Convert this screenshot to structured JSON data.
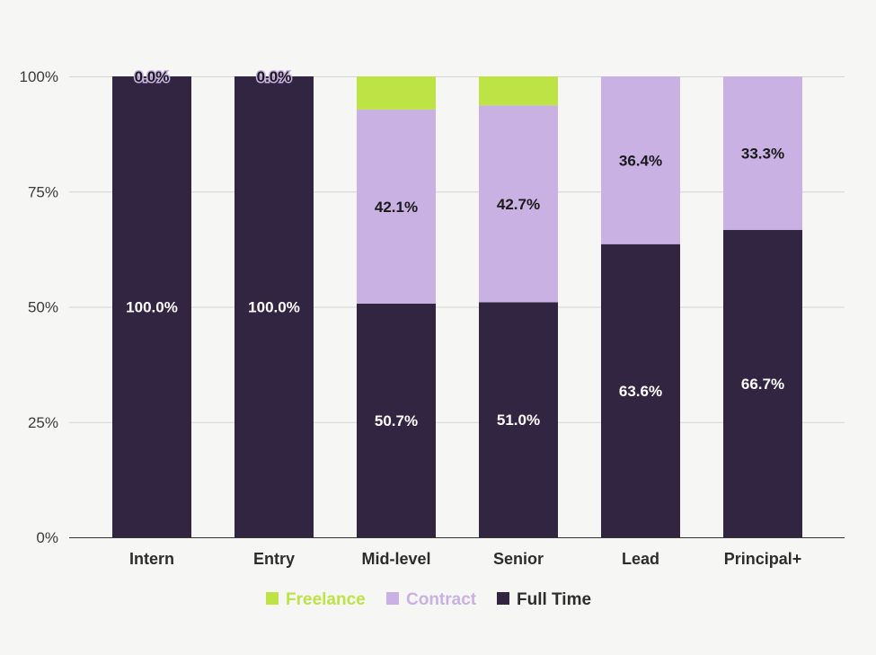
{
  "chart_data": {
    "type": "bar",
    "stacked": true,
    "normalized": true,
    "categories": [
      "Intern",
      "Entry",
      "Mid-level",
      "Senior",
      "Lead",
      "Principal+"
    ],
    "series": [
      {
        "name": "Full Time",
        "color": "#312542",
        "label_color": "#ffffff",
        "values": [
          100.0,
          100.0,
          50.7,
          51.0,
          63.6,
          66.7
        ]
      },
      {
        "name": "Contract",
        "color": "#c9b1e3",
        "label_color": "#1a1a1a",
        "values": [
          0.0,
          0.0,
          42.1,
          42.7,
          36.4,
          33.3
        ]
      },
      {
        "name": "Freelance",
        "color": "#bde345",
        "label_color": "#1a1a1a",
        "values": [
          0.0,
          0.0,
          7.2,
          6.3,
          0.0,
          0.0
        ]
      }
    ],
    "data_labels": {
      "Full Time": [
        "100.0%",
        "100.0%",
        "50.7%",
        "51.0%",
        "63.6%",
        "66.7%"
      ],
      "Contract": [
        "0.0%",
        "0.0%",
        "42.1%",
        "42.7%",
        "36.4%",
        "33.3%"
      ]
    },
    "yticks": [
      "0%",
      "25%",
      "50%",
      "75%",
      "100%"
    ],
    "ylim": [
      0,
      100
    ],
    "grid": true,
    "legend": {
      "placement": "bottom-center",
      "order": [
        "Freelance",
        "Contract",
        "Full Time"
      ]
    }
  }
}
